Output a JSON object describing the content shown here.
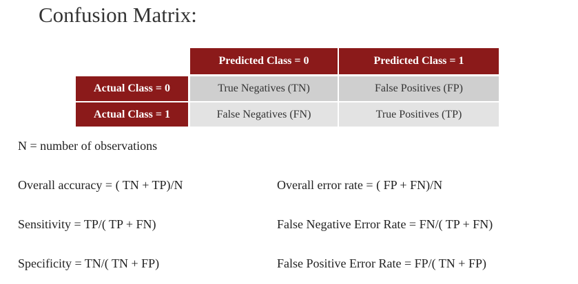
{
  "title": "Confusion Matrix:",
  "matrix": {
    "col_headers": [
      "Predicted Class = 0",
      "Predicted Class = 1"
    ],
    "rows": [
      {
        "header": "Actual Class = 0",
        "cells": [
          "True Negatives (TN)",
          "False Positives (FP)"
        ]
      },
      {
        "header": "Actual Class = 1",
        "cells": [
          "False Negatives (FN)",
          "True Positives (TP)"
        ]
      }
    ],
    "header_color": "#8b1a1a"
  },
  "definition": "N = number of observations",
  "formulas": {
    "left": [
      "Overall accuracy = ( TN + TP)/N",
      "Sensitivity = TP/( TP + FN)",
      "Specificity = TN/( TN + FP)"
    ],
    "right": [
      "Overall error rate = ( FP + FN)/N",
      "False Negative Error Rate = FN/( TP + FN)",
      "False Positive Error Rate = FP/( TN + FP)"
    ]
  }
}
